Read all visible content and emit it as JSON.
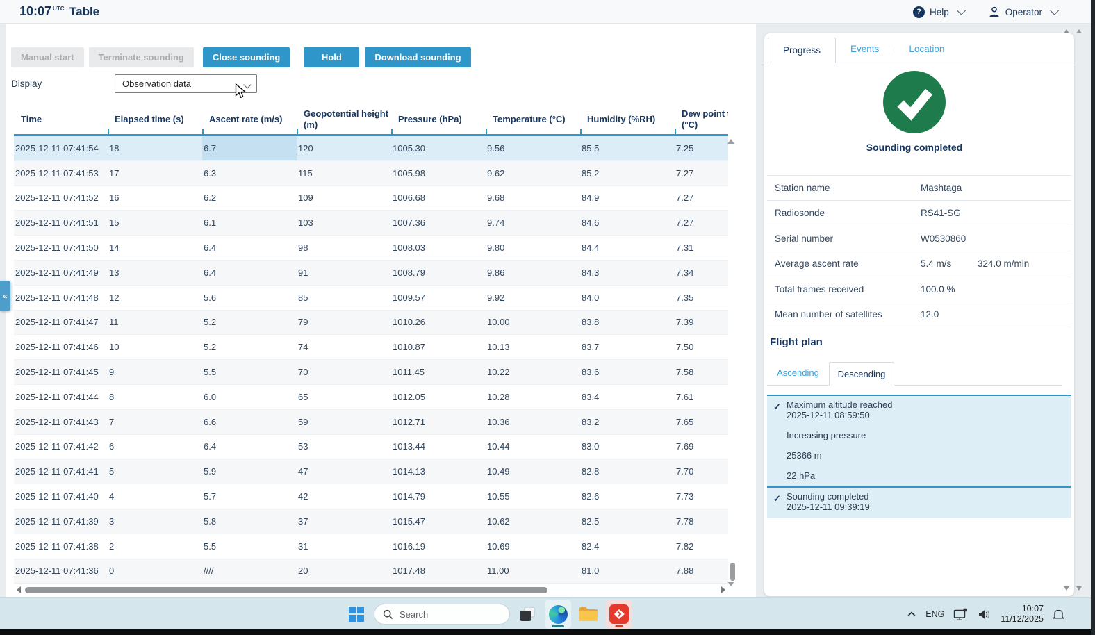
{
  "colors": {
    "accent_blue": "#2e96c8",
    "navy_text": "#17365e",
    "link_blue": "#3ba1d9",
    "success_green": "#1e7b4b",
    "selection_row": "#dcedf8",
    "selection_cell": "#c5e0f1",
    "taskbar_bg": "#d5e6ec",
    "app_red": "#e5392b"
  },
  "header": {
    "time": "10:07",
    "time_zone": "UTC",
    "title": "Table",
    "help": "Help",
    "user": "Operator"
  },
  "toolbar": {
    "buttons": [
      {
        "label": "Manual start",
        "enabled": false
      },
      {
        "label": "Terminate sounding",
        "enabled": false
      },
      {
        "label": "Close sounding",
        "enabled": true
      },
      {
        "label": "Hold",
        "enabled": true
      },
      {
        "label": "Download sounding",
        "enabled": true
      }
    ],
    "display_label": "Display",
    "display_value": "Observation data"
  },
  "table": {
    "columns": [
      {
        "label": "Time"
      },
      {
        "label": "Elapsed time (s)"
      },
      {
        "label": "Ascent rate (m/s)"
      },
      {
        "label": "Geopotential height",
        "sub": "(m)"
      },
      {
        "label": "Pressure (hPa)"
      },
      {
        "label": "Temperature (°C)"
      },
      {
        "label": "Humidity (%RH)"
      },
      {
        "label": "Dew point te",
        "sub": "(°C)"
      }
    ],
    "selected_row": 0,
    "selected_cell_col": 2,
    "rows": [
      [
        "2025-12-11 07:41:54",
        "18",
        "6.7",
        "120",
        "1005.30",
        "9.56",
        "85.5",
        "7.25"
      ],
      [
        "2025-12-11 07:41:53",
        "17",
        "6.3",
        "115",
        "1005.98",
        "9.62",
        "85.2",
        "7.27"
      ],
      [
        "2025-12-11 07:41:52",
        "16",
        "6.2",
        "109",
        "1006.68",
        "9.68",
        "84.9",
        "7.27"
      ],
      [
        "2025-12-11 07:41:51",
        "15",
        "6.1",
        "103",
        "1007.36",
        "9.74",
        "84.6",
        "7.27"
      ],
      [
        "2025-12-11 07:41:50",
        "14",
        "6.4",
        "98",
        "1008.03",
        "9.80",
        "84.4",
        "7.31"
      ],
      [
        "2025-12-11 07:41:49",
        "13",
        "6.4",
        "91",
        "1008.79",
        "9.86",
        "84.3",
        "7.34"
      ],
      [
        "2025-12-11 07:41:48",
        "12",
        "5.6",
        "85",
        "1009.57",
        "9.92",
        "84.0",
        "7.35"
      ],
      [
        "2025-12-11 07:41:47",
        "11",
        "5.2",
        "79",
        "1010.26",
        "10.00",
        "83.8",
        "7.39"
      ],
      [
        "2025-12-11 07:41:46",
        "10",
        "5.2",
        "74",
        "1010.87",
        "10.13",
        "83.7",
        "7.50"
      ],
      [
        "2025-12-11 07:41:45",
        "9",
        "5.5",
        "70",
        "1011.45",
        "10.22",
        "83.6",
        "7.58"
      ],
      [
        "2025-12-11 07:41:44",
        "8",
        "6.0",
        "65",
        "1012.05",
        "10.28",
        "83.4",
        "7.61"
      ],
      [
        "2025-12-11 07:41:43",
        "7",
        "6.6",
        "59",
        "1012.71",
        "10.36",
        "83.2",
        "7.65"
      ],
      [
        "2025-12-11 07:41:42",
        "6",
        "6.4",
        "53",
        "1013.44",
        "10.44",
        "83.0",
        "7.69"
      ],
      [
        "2025-12-11 07:41:41",
        "5",
        "5.9",
        "47",
        "1014.13",
        "10.49",
        "82.8",
        "7.70"
      ],
      [
        "2025-12-11 07:41:40",
        "4",
        "5.7",
        "42",
        "1014.79",
        "10.55",
        "82.6",
        "7.73"
      ],
      [
        "2025-12-11 07:41:39",
        "3",
        "5.8",
        "37",
        "1015.47",
        "10.62",
        "82.5",
        "7.78"
      ],
      [
        "2025-12-11 07:41:38",
        "2",
        "5.5",
        "31",
        "1016.19",
        "10.69",
        "82.4",
        "7.82"
      ],
      [
        "2025-12-11 07:41:36",
        "0",
        "////",
        "20",
        "1017.48",
        "11.00",
        "81.0",
        "7.88"
      ]
    ]
  },
  "panel": {
    "tabs": [
      {
        "label": "Progress",
        "active": true
      },
      {
        "label": "Events",
        "active": false
      },
      {
        "label": "Location",
        "active": false
      }
    ],
    "status_text": "Sounding completed",
    "info_rows": [
      {
        "label": "Station name",
        "value": "Mashtaga"
      },
      {
        "label": "Radiosonde",
        "value": "RS41-SG"
      },
      {
        "label": "Serial number",
        "value": "W0530860"
      },
      {
        "label": "Average ascent rate",
        "value": "5.4 m/s",
        "value2": "324.0 m/min"
      },
      {
        "label": "Total frames received",
        "value": "100.0 %"
      },
      {
        "label": "Mean number of satellites",
        "value": "12.0"
      }
    ],
    "flight_plan": {
      "title": "Flight plan",
      "tabs": [
        {
          "label": "Ascending",
          "active": false
        },
        {
          "label": "Descending",
          "active": true
        }
      ],
      "items": [
        {
          "checked": true,
          "title": "Maximum altitude reached",
          "timestamp": "2025-12-11 08:59:50",
          "details": [
            "Increasing pressure",
            "25366 m",
            "22 hPa"
          ]
        },
        {
          "checked": true,
          "title": "Sounding completed",
          "timestamp": "2025-12-11 09:39:19",
          "details": []
        }
      ]
    }
  },
  "taskbar": {
    "search": "Search",
    "tray": {
      "language": "ENG",
      "time": "10:07",
      "date": "11/12/2025"
    }
  }
}
